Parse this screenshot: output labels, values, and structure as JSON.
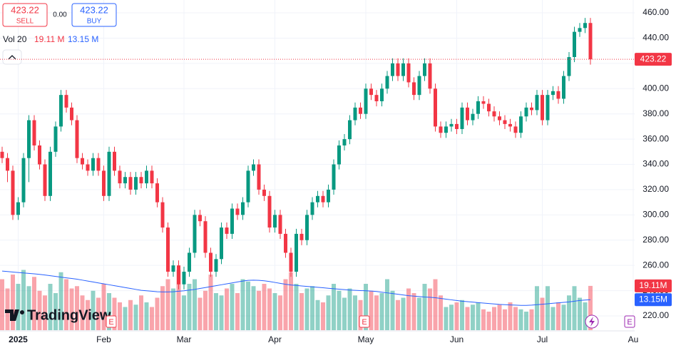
{
  "chart_data": {
    "type": "candlestick",
    "categories": [
      null,
      null,
      null,
      "2025",
      null,
      null,
      null,
      null,
      null,
      null,
      null,
      null,
      null,
      null,
      null,
      null,
      null,
      null,
      null,
      "Feb",
      null,
      null,
      null,
      null,
      null,
      null,
      null,
      null,
      null,
      null,
      null,
      null,
      null,
      null,
      "Mar",
      null,
      null,
      null,
      null,
      null,
      null,
      null,
      null,
      null,
      null,
      null,
      null,
      null,
      null,
      null,
      null,
      "Apr",
      null,
      null,
      null,
      null,
      null,
      null,
      null,
      null,
      null,
      null,
      null,
      null,
      null,
      null,
      null,
      null,
      "May",
      null,
      null,
      null,
      null,
      null,
      null,
      null,
      null,
      null,
      null,
      null,
      null,
      null,
      null,
      null,
      null,
      "Jun",
      null,
      null,
      null,
      null,
      null,
      null,
      null,
      null,
      null,
      null,
      null,
      null,
      null,
      null,
      null,
      "Jul",
      null,
      null,
      null,
      null,
      null,
      null,
      null,
      null,
      null,
      null,
      null,
      null,
      null,
      null,
      null,
      null,
      "Au"
    ],
    "open": [
      350,
      345,
      335,
      300,
      310,
      345,
      375,
      355,
      340,
      315,
      350,
      370,
      395,
      385,
      375,
      345,
      340,
      335,
      345,
      335,
      315,
      350,
      335,
      325,
      330,
      320,
      330,
      325,
      335,
      325,
      310,
      290,
      255,
      260,
      245,
      255,
      270,
      300,
      295,
      270,
      255,
      265,
      290,
      285,
      305,
      300,
      310,
      335,
      340,
      320,
      315,
      290,
      300,
      285,
      270,
      255,
      285,
      280,
      300,
      310,
      315,
      310,
      320,
      340,
      355,
      360,
      375,
      385,
      380,
      400,
      395,
      390,
      400,
      410,
      420,
      410,
      420,
      405,
      395,
      410,
      420,
      400,
      370,
      365,
      370,
      372,
      368,
      385,
      375,
      380,
      390,
      388,
      382,
      378,
      375,
      372,
      370,
      365,
      378,
      385,
      383,
      395,
      375,
      395,
      398,
      392,
      410,
      425,
      445,
      448,
      452,
      null,
      null,
      null,
      null,
      null,
      null,
      null,
      null
    ],
    "high": [
      354,
      349,
      339,
      314,
      349,
      379,
      379,
      359,
      344,
      354,
      374,
      399,
      399,
      389,
      379,
      349,
      344,
      349,
      349,
      339,
      354,
      354,
      339,
      334,
      334,
      334,
      334,
      339,
      339,
      329,
      314,
      294,
      264,
      264,
      259,
      274,
      304,
      304,
      299,
      274,
      269,
      294,
      294,
      309,
      309,
      314,
      339,
      344,
      344,
      324,
      319,
      304,
      304,
      289,
      274,
      289,
      289,
      304,
      314,
      319,
      319,
      324,
      344,
      359,
      364,
      379,
      389,
      389,
      404,
      404,
      399,
      404,
      414,
      424,
      424,
      424,
      424,
      409,
      414,
      424,
      424,
      404,
      374,
      374,
      376,
      376,
      389,
      389,
      384,
      394,
      394,
      392,
      386,
      382,
      379,
      376,
      374,
      382,
      389,
      389,
      399,
      399,
      399,
      402,
      402,
      414,
      429,
      449,
      452,
      456,
      456,
      null,
      null,
      null,
      null,
      null,
      null,
      null,
      null
    ],
    "low": [
      341,
      326,
      296,
      296,
      306,
      326,
      351,
      336,
      311,
      311,
      346,
      366,
      381,
      371,
      341,
      336,
      331,
      331,
      331,
      311,
      311,
      331,
      321,
      321,
      316,
      316,
      321,
      321,
      321,
      306,
      286,
      251,
      251,
      241,
      241,
      251,
      266,
      291,
      266,
      251,
      251,
      261,
      281,
      281,
      296,
      296,
      306,
      331,
      316,
      311,
      286,
      286,
      281,
      266,
      251,
      251,
      276,
      276,
      296,
      306,
      306,
      306,
      316,
      336,
      351,
      356,
      371,
      376,
      376,
      391,
      386,
      386,
      396,
      406,
      406,
      406,
      401,
      391,
      391,
      406,
      396,
      366,
      361,
      361,
      366,
      364,
      364,
      371,
      371,
      376,
      384,
      378,
      374,
      371,
      368,
      366,
      361,
      361,
      374,
      379,
      379,
      371,
      371,
      391,
      388,
      388,
      406,
      421,
      441,
      444,
      419,
      null,
      null,
      null,
      null,
      null,
      null,
      null,
      null
    ],
    "close": [
      345,
      335,
      300,
      310,
      345,
      375,
      355,
      340,
      315,
      350,
      370,
      395,
      385,
      375,
      345,
      340,
      335,
      345,
      335,
      315,
      350,
      335,
      325,
      330,
      320,
      330,
      325,
      335,
      325,
      310,
      290,
      255,
      260,
      245,
      255,
      270,
      300,
      295,
      270,
      255,
      265,
      290,
      285,
      305,
      300,
      310,
      335,
      340,
      320,
      315,
      290,
      300,
      285,
      270,
      255,
      285,
      280,
      300,
      310,
      315,
      310,
      320,
      340,
      355,
      360,
      375,
      385,
      380,
      400,
      395,
      390,
      400,
      410,
      420,
      410,
      420,
      405,
      395,
      410,
      420,
      400,
      370,
      365,
      370,
      372,
      368,
      385,
      375,
      380,
      390,
      388,
      382,
      378,
      375,
      372,
      370,
      365,
      378,
      385,
      383,
      395,
      375,
      395,
      398,
      392,
      410,
      425,
      445,
      448,
      452,
      423.22,
      null,
      null,
      null,
      null,
      null,
      null,
      null,
      null
    ],
    "up_color": "#089981",
    "down_color": "#f23645",
    "ylim": [
      208.7,
      470.2
    ],
    "yticks": [
      {
        "value": 220,
        "label": "220.00"
      },
      {
        "value": 240,
        "label": "240.00"
      },
      {
        "value": 260,
        "label": "260.00"
      },
      {
        "value": 280,
        "label": "280.00"
      },
      {
        "value": 300,
        "label": "300.00"
      },
      {
        "value": 320,
        "label": "320.00"
      },
      {
        "value": 340,
        "label": "340.00"
      },
      {
        "value": 360,
        "label": "360.00"
      },
      {
        "value": 380,
        "label": "380.00"
      },
      {
        "value": 400,
        "label": "400.00"
      },
      {
        "value": 420,
        "label": "420.00"
      },
      {
        "value": 440,
        "label": "440.00"
      },
      {
        "value": 460,
        "label": "460.00"
      }
    ],
    "grid": true,
    "volume": {
      "label": "Vol 20",
      "value_label": "19.11 M",
      "ma_label": "13.15 M",
      "tag": "19.11M",
      "ma_tag": "13.15M",
      "ma_color": "#2962ff",
      "y2lim": [
        0,
        142.5
      ],
      "values": [
        22,
        18,
        24,
        20,
        26,
        19,
        23,
        17,
        15,
        20,
        16,
        25,
        22,
        18,
        19,
        15,
        13,
        17,
        14,
        20,
        16,
        14,
        12,
        10,
        13,
        11,
        15,
        12,
        10,
        14,
        19,
        22,
        18,
        26,
        15,
        20,
        22,
        14,
        17,
        24,
        16,
        15,
        18,
        20,
        16,
        22,
        21,
        19,
        17,
        20,
        18,
        16,
        15,
        22,
        25,
        20,
        16,
        18,
        19,
        13,
        12,
        15,
        20,
        17,
        14,
        18,
        15,
        13,
        20,
        17,
        15,
        16,
        22,
        17,
        13,
        14,
        18,
        16,
        14,
        20,
        18,
        22,
        15,
        10,
        11,
        12,
        13,
        10,
        11,
        12,
        9,
        8,
        10,
        11,
        9,
        12,
        10,
        9,
        8,
        9,
        19,
        14,
        19,
        10,
        12,
        11,
        15,
        19,
        14,
        12,
        19.11,
        null,
        null,
        null,
        null,
        null,
        null,
        null,
        null
      ],
      "ma": [
        25.5,
        25.3,
        25.1,
        24.9,
        24.7,
        24.5,
        24.3,
        24.1,
        23.8,
        23.5,
        23.2,
        22.9,
        22.6,
        22.3,
        22.0,
        21.6,
        21.2,
        20.8,
        20.4,
        20.0,
        19.6,
        19.2,
        18.8,
        18.4,
        18.0,
        17.6,
        17.2,
        17.0,
        16.8,
        16.6,
        16.5,
        16.5,
        16.6,
        16.8,
        17.0,
        17.3,
        17.6,
        18.0,
        18.4,
        18.8,
        19.2,
        19.6,
        20.0,
        20.4,
        20.8,
        21.2,
        21.5,
        21.6,
        21.5,
        21.3,
        21.0,
        20.6,
        20.2,
        19.8,
        19.5,
        19.3,
        19.1,
        18.9,
        18.7,
        18.5,
        18.3,
        18.1,
        17.9,
        17.7,
        17.5,
        17.3,
        17.2,
        17.1,
        17.0,
        16.9,
        16.7,
        16.4,
        16.1,
        15.8,
        15.5,
        15.2,
        14.9,
        14.7,
        14.5,
        14.3,
        14.2,
        14.0,
        13.7,
        13.4,
        13.1,
        12.8,
        12.5,
        12.3,
        12.1,
        11.9,
        11.7,
        11.5,
        11.3,
        11.1,
        11.0,
        10.9,
        10.8,
        10.7,
        10.7,
        10.8,
        11.0,
        11.2,
        11.4,
        11.6,
        11.8,
        12.0,
        12.2,
        12.5,
        12.8,
        13.0,
        13.15,
        null,
        null,
        null,
        null,
        null,
        null,
        null,
        null
      ]
    },
    "trade": {
      "sell_price": 423.22,
      "sell": "SELL",
      "spread": "0.00",
      "buy_price": 423.22,
      "buy": "BUY"
    },
    "logo": "TradingView",
    "events": [
      "E",
      "E",
      "E"
    ]
  }
}
